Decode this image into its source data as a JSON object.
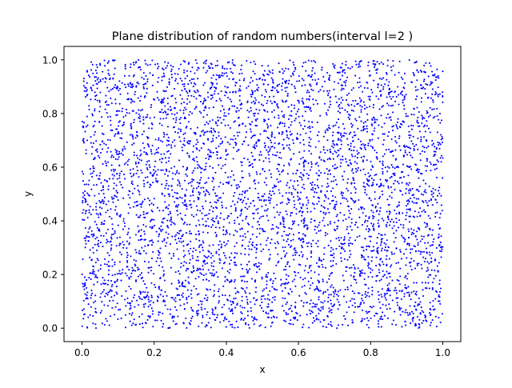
{
  "chart_data": {
    "type": "scatter",
    "title": "Plane distribution of random numbers(interval l=2 )",
    "xlabel": "x",
    "ylabel": "y",
    "xlim": [
      -0.05,
      1.05
    ],
    "ylim": [
      -0.05,
      1.05
    ],
    "x_ticks": [
      0.0,
      0.2,
      0.4,
      0.6,
      0.8,
      1.0
    ],
    "x_tick_labels": [
      "0.0",
      "0.2",
      "0.4",
      "0.6",
      "0.8",
      "1.0"
    ],
    "y_ticks": [
      0.0,
      0.2,
      0.4,
      0.6,
      0.8,
      1.0
    ],
    "y_tick_labels": [
      "0.0",
      "0.2",
      "0.4",
      "0.6",
      "0.8",
      "1.0"
    ],
    "grid": false,
    "legend": "none",
    "marker_color": "#0000ff",
    "series": [
      {
        "generator": "sequential pseudo-random pairs (x_i, y_i) on [0, 1]",
        "point_count": 5000
      }
    ]
  }
}
